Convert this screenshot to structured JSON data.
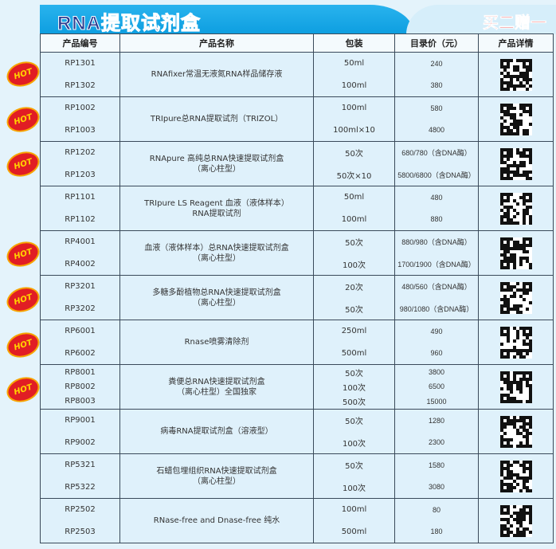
{
  "banner": {
    "title": "RNA提取试剂盒",
    "promo": "买二赠一"
  },
  "colors": {
    "banner": "#0d9ee0",
    "promo": "#e8262b",
    "hot": "#e11d24"
  },
  "hot_label": "HOT",
  "headers": [
    "产品编号",
    "产品名称",
    "包装",
    "目录价（元）",
    "产品详情"
  ],
  "rows": [
    {
      "hot": true,
      "codes": [
        "RP1301",
        "RP1302"
      ],
      "name": [
        "RNAfixer常温无液氮RNA样品储存液"
      ],
      "packs": [
        "50ml",
        "100ml"
      ],
      "prices": [
        "240",
        "380"
      ]
    },
    {
      "hot": true,
      "codes": [
        "RP1002",
        "RP1003"
      ],
      "name": [
        "TRIpure总RNA提取试剂（TRIZOL）"
      ],
      "packs": [
        "100ml",
        "100ml×10"
      ],
      "prices": [
        "580",
        "4800"
      ]
    },
    {
      "hot": true,
      "codes": [
        "RP1202",
        "RP1203"
      ],
      "name": [
        "RNApure 高纯总RNA快速提取试剂盒",
        "（离心柱型）"
      ],
      "packs": [
        "50次",
        "50次×10"
      ],
      "prices": [
        "680/780（含DNA酶）",
        "5800/6800（含DNA酶）"
      ]
    },
    {
      "hot": false,
      "codes": [
        "RP1101",
        "RP1102"
      ],
      "name": [
        "TRIpure LS Reagent 血液（液体样本）",
        "RNA提取试剂"
      ],
      "packs": [
        "50ml",
        "100ml"
      ],
      "prices": [
        "480",
        "880"
      ]
    },
    {
      "hot": true,
      "codes": [
        "RP4001",
        "RP4002"
      ],
      "name": [
        "血液（液体样本）总RNA快速提取试剂盒",
        "（离心柱型）"
      ],
      "packs": [
        "50次",
        "100次"
      ],
      "prices": [
        "880/980（含DNA酶）",
        "1700/1900（含DNA酶）"
      ]
    },
    {
      "hot": true,
      "codes": [
        "RP3201",
        "RP3202"
      ],
      "name": [
        "多糖多酚植物总RNA快速提取试剂盒",
        "（离心柱型）"
      ],
      "packs": [
        "20次",
        "50次"
      ],
      "prices": [
        "480/560（含DNA酶）",
        "980/1080（含DNA酶）"
      ]
    },
    {
      "hot": true,
      "codes": [
        "RP6001",
        "RP6002"
      ],
      "name": [
        "Rnase喷雾清除剂"
      ],
      "packs": [
        "250ml",
        "500ml"
      ],
      "prices": [
        "490",
        "960"
      ]
    },
    {
      "hot": true,
      "codes": [
        "RP8001",
        "RP8002",
        "RP8003"
      ],
      "name": [
        "粪便总RNA快速提取试剂盒",
        "（离心柱型）全国独家"
      ],
      "packs": [
        "50次",
        "100次",
        "500次"
      ],
      "prices": [
        "3800",
        "6500",
        "15000"
      ]
    },
    {
      "hot": false,
      "codes": [
        "RP9001",
        "RP9002"
      ],
      "name": [
        "病毒RNA提取试剂盒（溶液型）"
      ],
      "packs": [
        "50次",
        "100次"
      ],
      "prices": [
        "1280",
        "2300"
      ]
    },
    {
      "hot": false,
      "codes": [
        "RP5321",
        "RP5322"
      ],
      "name": [
        "石蜡包埋组织RNA快速提取试剂盒",
        "（离心柱型）"
      ],
      "packs": [
        "50次",
        "100次"
      ],
      "prices": [
        "1580",
        "3080"
      ]
    },
    {
      "hot": false,
      "codes": [
        "RP2502",
        "RP2503"
      ],
      "name": [
        "RNase-free and Dnase-free 纯水"
      ],
      "packs": [
        "100ml",
        "500ml"
      ],
      "prices": [
        "80",
        "180"
      ]
    }
  ]
}
